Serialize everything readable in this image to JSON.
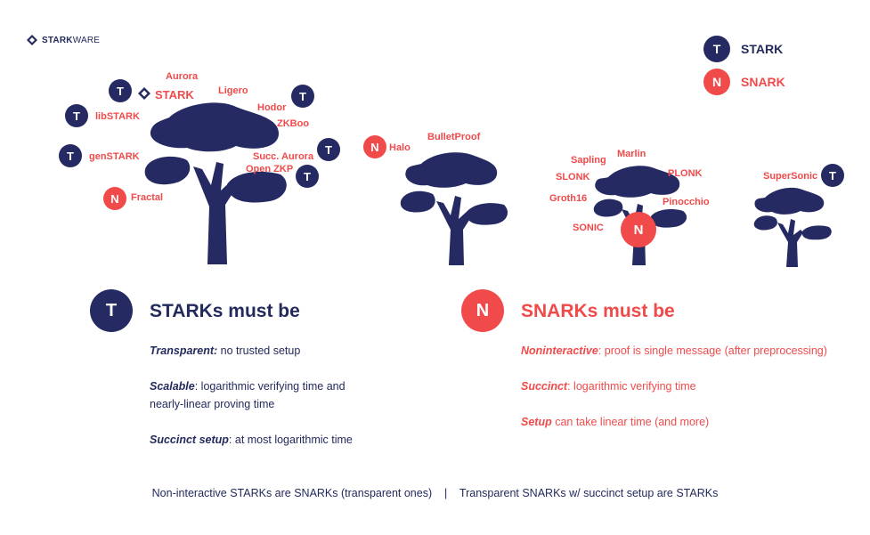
{
  "brand": {
    "logo_text_bold": "STARK",
    "logo_text_light": "WARE",
    "logo_icon": "starkware-diamond-icon"
  },
  "legend": {
    "stark_badge": "T",
    "stark_label": "STARK",
    "snark_badge": "N",
    "snark_label": "SNARK"
  },
  "colors": {
    "navy": "#252a62",
    "red": "#f14a4a"
  },
  "tree1": {
    "aurora": "Aurora",
    "stark": "STARK",
    "ligero": "Ligero",
    "hodor": "Hodor",
    "zkboo": "ZKBoo",
    "libstark": "libSTARK",
    "genstark": "genSTARK",
    "succ_aurora": "Succ. Aurora",
    "open_zkp": "Open ZKP",
    "fractal": "Fractal"
  },
  "tree2": {
    "halo": "Halo",
    "bulletproof": "BulletProof"
  },
  "tree3": {
    "sapling": "Sapling",
    "marlin": "Marlin",
    "slonk": "SLONK",
    "plonk": "PLONK",
    "groth16": "Groth16",
    "pinocchio": "Pinocchio",
    "sonic": "SONIC"
  },
  "tree4": {
    "supersonic": "SuperSonic"
  },
  "badges": {
    "t": "T",
    "n": "N"
  },
  "starks": {
    "badge": "T",
    "title": "STARKs must be",
    "p1_term": "Transparent:",
    "p1_text": " no trusted setup",
    "p2_term": "Scalable",
    "p2_text": ": logarithmic verifying time and",
    "p2_text2": "nearly-linear proving time",
    "p3_term": "Succinct setup",
    "p3_text": ": at most logarithmic time"
  },
  "snarks": {
    "badge": "N",
    "title": "SNARKs must be",
    "p1_term": "Noninteractive",
    "p1_text": ": proof is single message (after preprocessing)",
    "p2_term": "Succinct",
    "p2_text": ": logarithmic verifying time",
    "p3_term": "Setup",
    "p3_text": " can take linear time (and more)"
  },
  "footer": "Non-interactive STARKs are SNARKs (transparent ones)    |    Transparent SNARKs w/ succinct setup are STARKs"
}
